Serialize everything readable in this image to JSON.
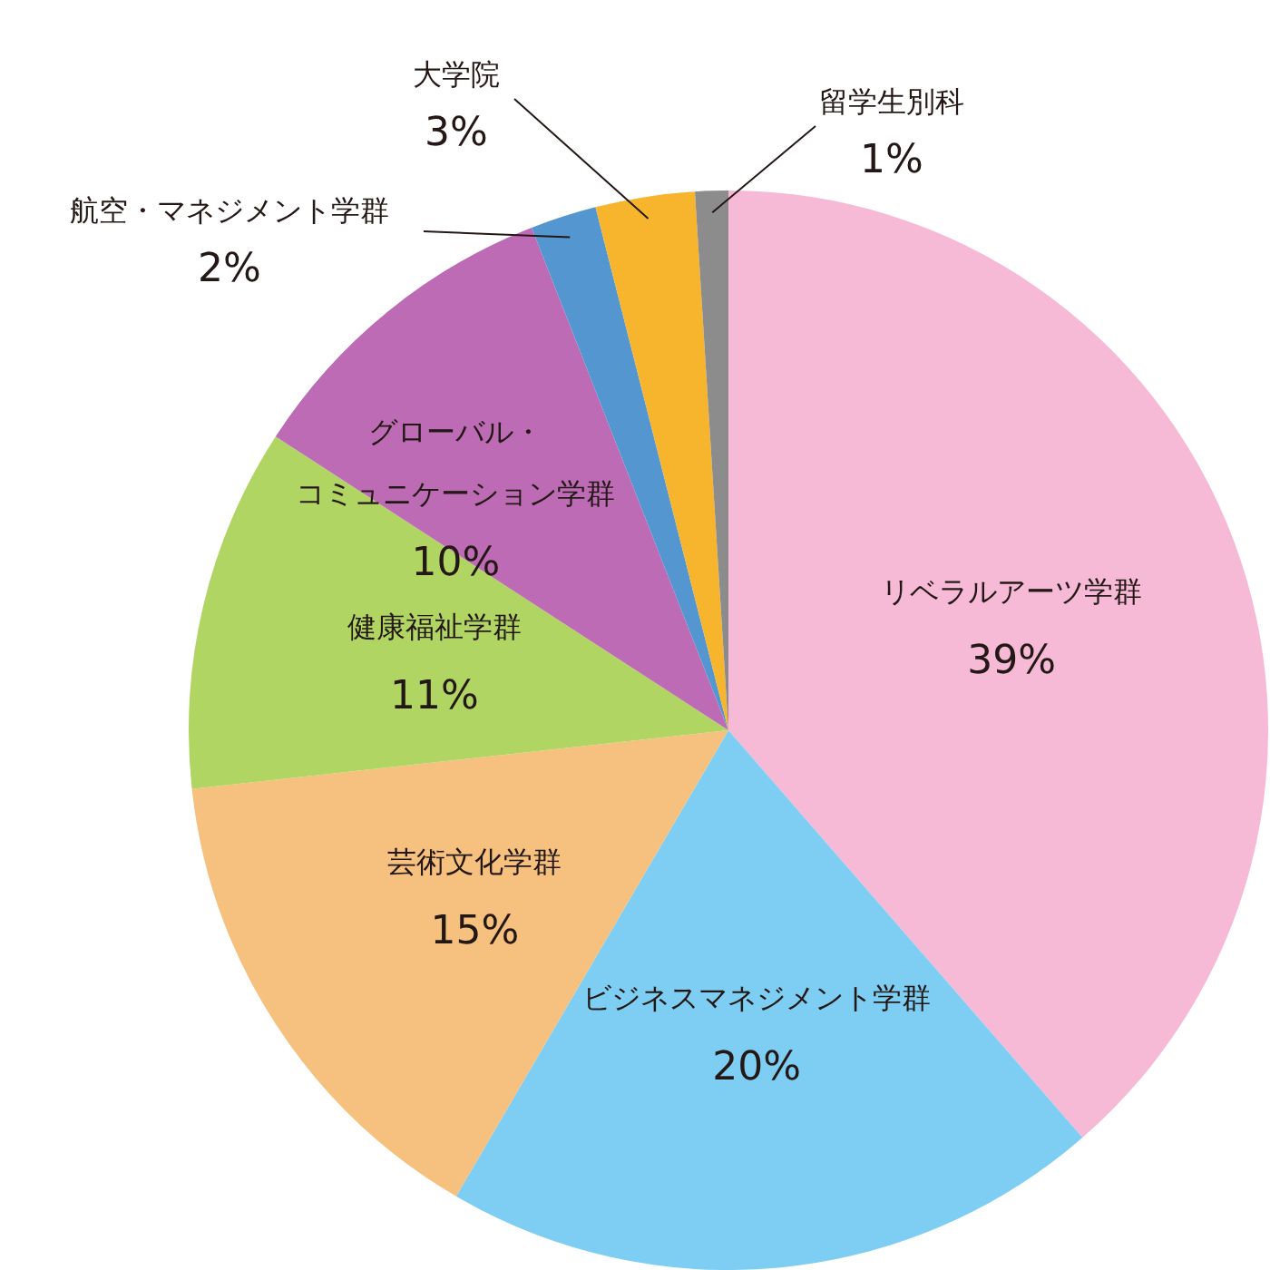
{
  "chart_data": {
    "type": "pie",
    "categories": [
      "リベラルアーツ学群",
      "ビジネスマネジメント学群",
      "芸術文化学群",
      "健康福祉学群",
      "グローバル・コミュニケーション学群",
      "航空・マネジメント学群",
      "大学院",
      "留学生別科"
    ],
    "values": [
      39,
      20,
      15,
      11,
      10,
      2,
      3,
      1
    ],
    "colors": [
      "#f6bad6",
      "#7ecef3",
      "#f6c07f",
      "#b0d563",
      "#bd6bb5",
      "#5497d0",
      "#f7b52e",
      "#8c8c8c"
    ],
    "value_labels": [
      "39%",
      "20%",
      "15%",
      "11%",
      "10%",
      "2%",
      "3%",
      "1%"
    ],
    "legend": false
  }
}
